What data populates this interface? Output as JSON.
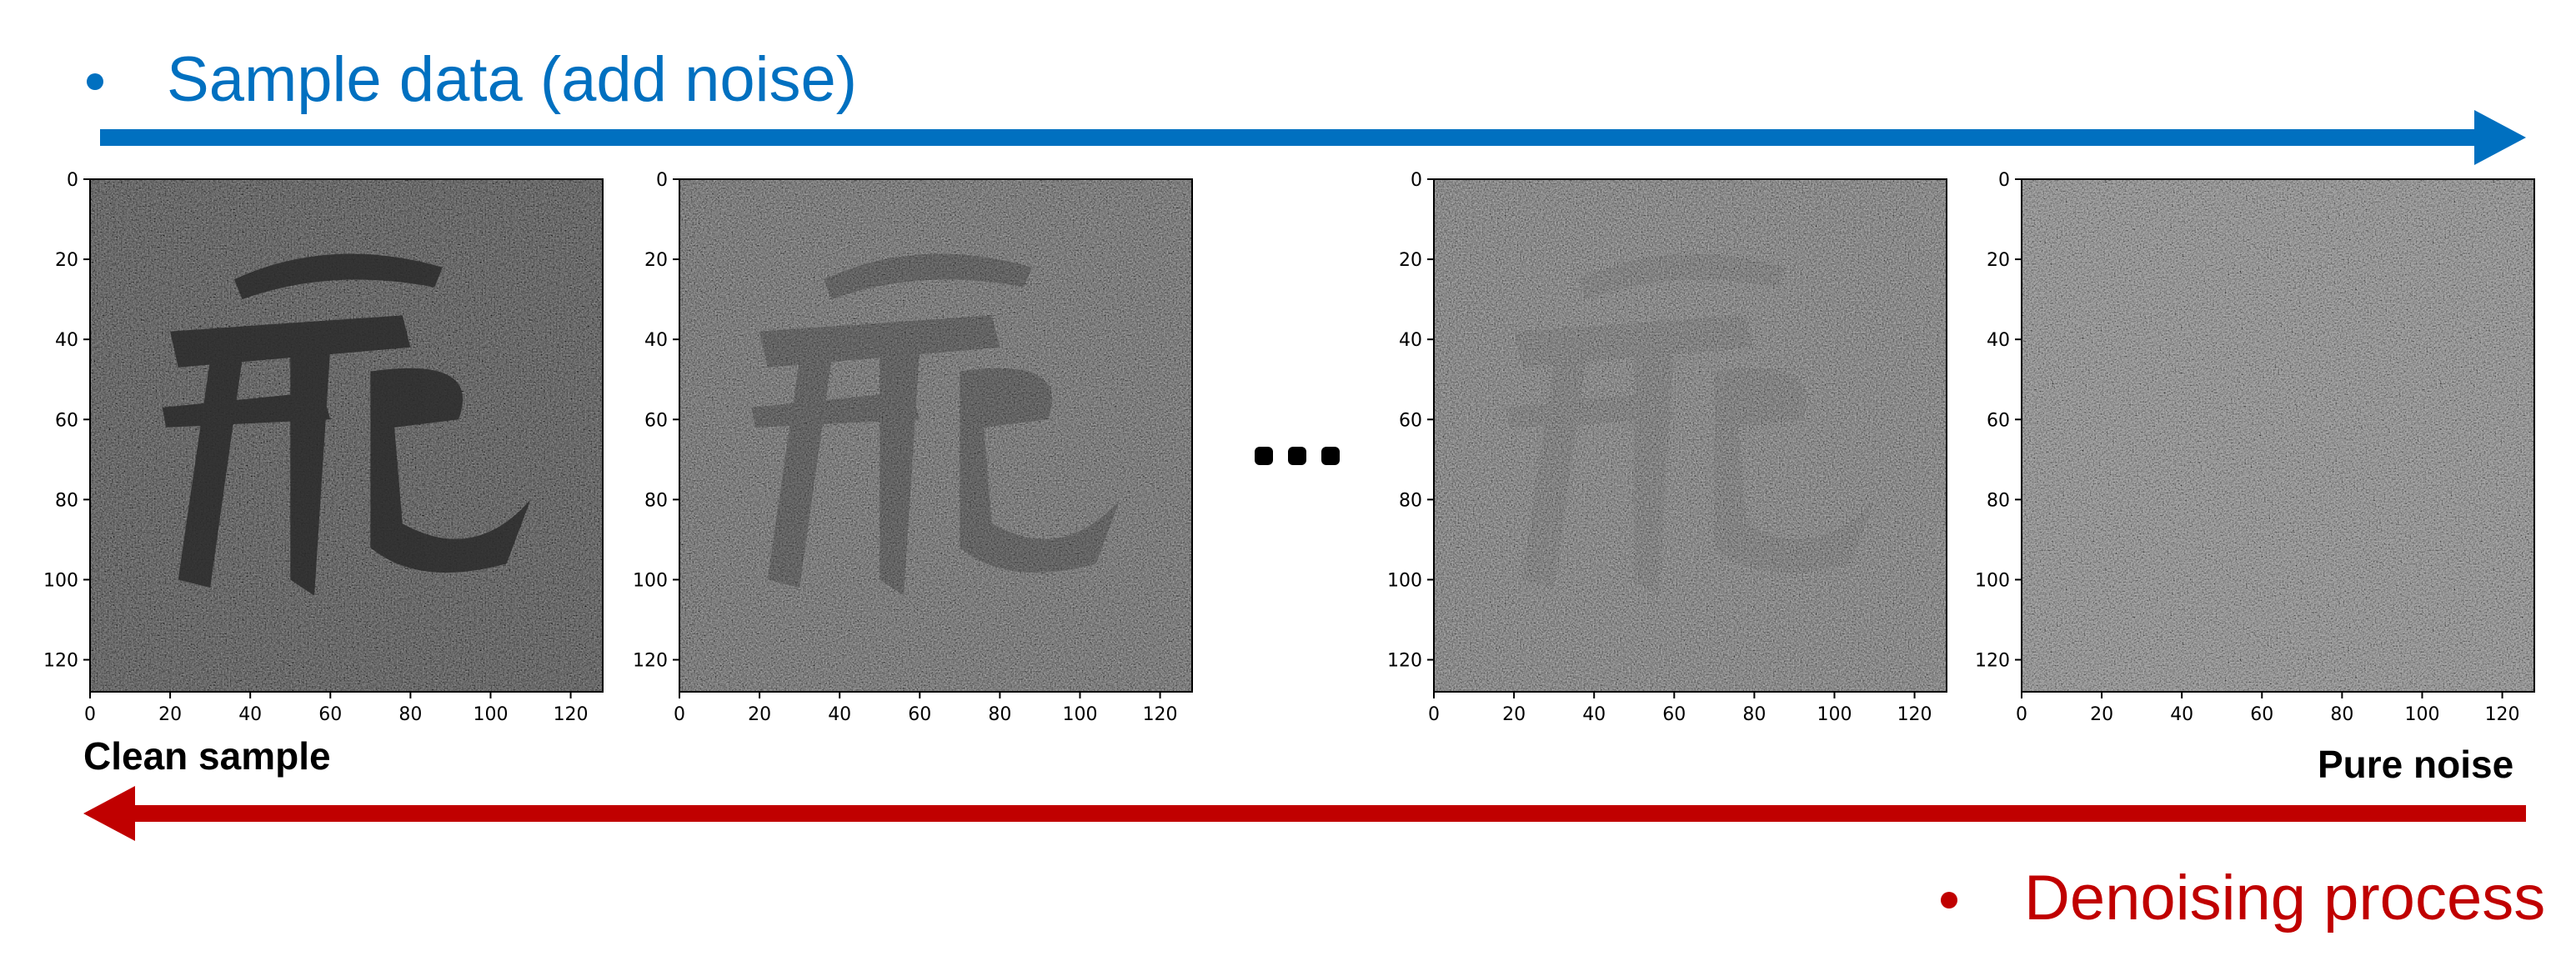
{
  "top_flow": {
    "heading": "Sample data (add noise)",
    "color": "#0070C0"
  },
  "bottom_flow": {
    "heading": "Denoising process",
    "color": "#C00000"
  },
  "labels": {
    "start": "Clean sample",
    "end": "Pure noise"
  },
  "panels": [
    {
      "name": "clean-sample",
      "noise_level": 0.15,
      "ink_strength": 1.0
    },
    {
      "name": "noisy-step-1",
      "noise_level": 0.55,
      "ink_strength": 0.35
    },
    {
      "name": "noisy-step-2",
      "noise_level": 0.85,
      "ink_strength": 0.08
    },
    {
      "name": "pure-noise",
      "noise_level": 1.0,
      "ink_strength": 0.0
    }
  ],
  "axis": {
    "ticks_x": [
      "0",
      "20",
      "40",
      "60",
      "80",
      "100",
      "120"
    ],
    "ticks_y": [
      "0",
      "20",
      "40",
      "60",
      "80",
      "100",
      "120"
    ],
    "range": [
      0,
      128
    ]
  },
  "ellipsis": "...",
  "colors": {
    "image_light": "#BEBEBE",
    "image_dark": "#333333"
  }
}
